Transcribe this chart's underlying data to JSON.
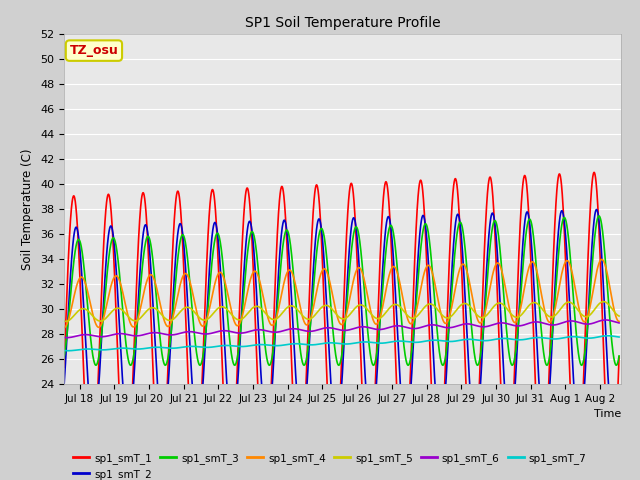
{
  "title": "SP1 Soil Temperature Profile",
  "xlabel": "Time",
  "ylabel": "Soil Temperature (C)",
  "ylim": [
    24,
    52
  ],
  "yticks": [
    24,
    26,
    28,
    30,
    32,
    34,
    36,
    38,
    40,
    42,
    44,
    46,
    48,
    50,
    52
  ],
  "series_colors": {
    "sp1_smT_1": "#ff0000",
    "sp1_smT_2": "#0000cc",
    "sp1_smT_3": "#00cc00",
    "sp1_smT_4": "#ff8800",
    "sp1_smT_5": "#cccc00",
    "sp1_smT_6": "#9900cc",
    "sp1_smT_7": "#00cccc"
  },
  "tz_label": "TZ_osu",
  "tz_box_color": "#ffffcc",
  "tz_text_color": "#cc0000",
  "tz_border_color": "#cccc00",
  "xtick_labels": [
    "Jul 18",
    "Jul 19",
    "Jul 20",
    "Jul 21",
    "Jul 22",
    "Jul 23",
    "Jul 24",
    "Jul 25",
    "Jul 26",
    "Jul 27",
    "Jul 28",
    "Jul 29",
    "Jul 30",
    "Jul 31",
    "Aug 1",
    "Aug 2"
  ],
  "xtick_positions": [
    18,
    19,
    20,
    21,
    22,
    23,
    24,
    25,
    26,
    27,
    28,
    29,
    30,
    31,
    32,
    33
  ],
  "series_params": {
    "sp1_smT_1": {
      "mean_s": 27.5,
      "mean_e": 28.5,
      "amp_s": 11.5,
      "amp_e": 12.5,
      "phase": 0.58
    },
    "sp1_smT_2": {
      "mean_s": 28.5,
      "mean_e": 29.0,
      "amp_s": 8.0,
      "amp_e": 9.0,
      "phase": 0.65
    },
    "sp1_smT_3": {
      "mean_s": 30.5,
      "mean_e": 31.5,
      "amp_s": 5.0,
      "amp_e": 6.0,
      "phase": 0.72
    },
    "sp1_smT_4": {
      "mean_s": 30.5,
      "mean_e": 31.5,
      "amp_s": 2.0,
      "amp_e": 2.5,
      "phase": 0.8
    },
    "sp1_smT_5": {
      "mean_s": 29.5,
      "mean_e": 30.0,
      "amp_s": 0.5,
      "amp_e": 0.6,
      "phase": 0.85
    },
    "sp1_smT_6": {
      "mean_s": 27.8,
      "mean_e": 29.0,
      "amp_s": 0.1,
      "amp_e": 0.15,
      "phase": 0.9
    },
    "sp1_smT_7": {
      "mean_s": 26.7,
      "mean_e": 27.8,
      "amp_s": 0.05,
      "amp_e": 0.08,
      "phase": 0.95
    }
  }
}
